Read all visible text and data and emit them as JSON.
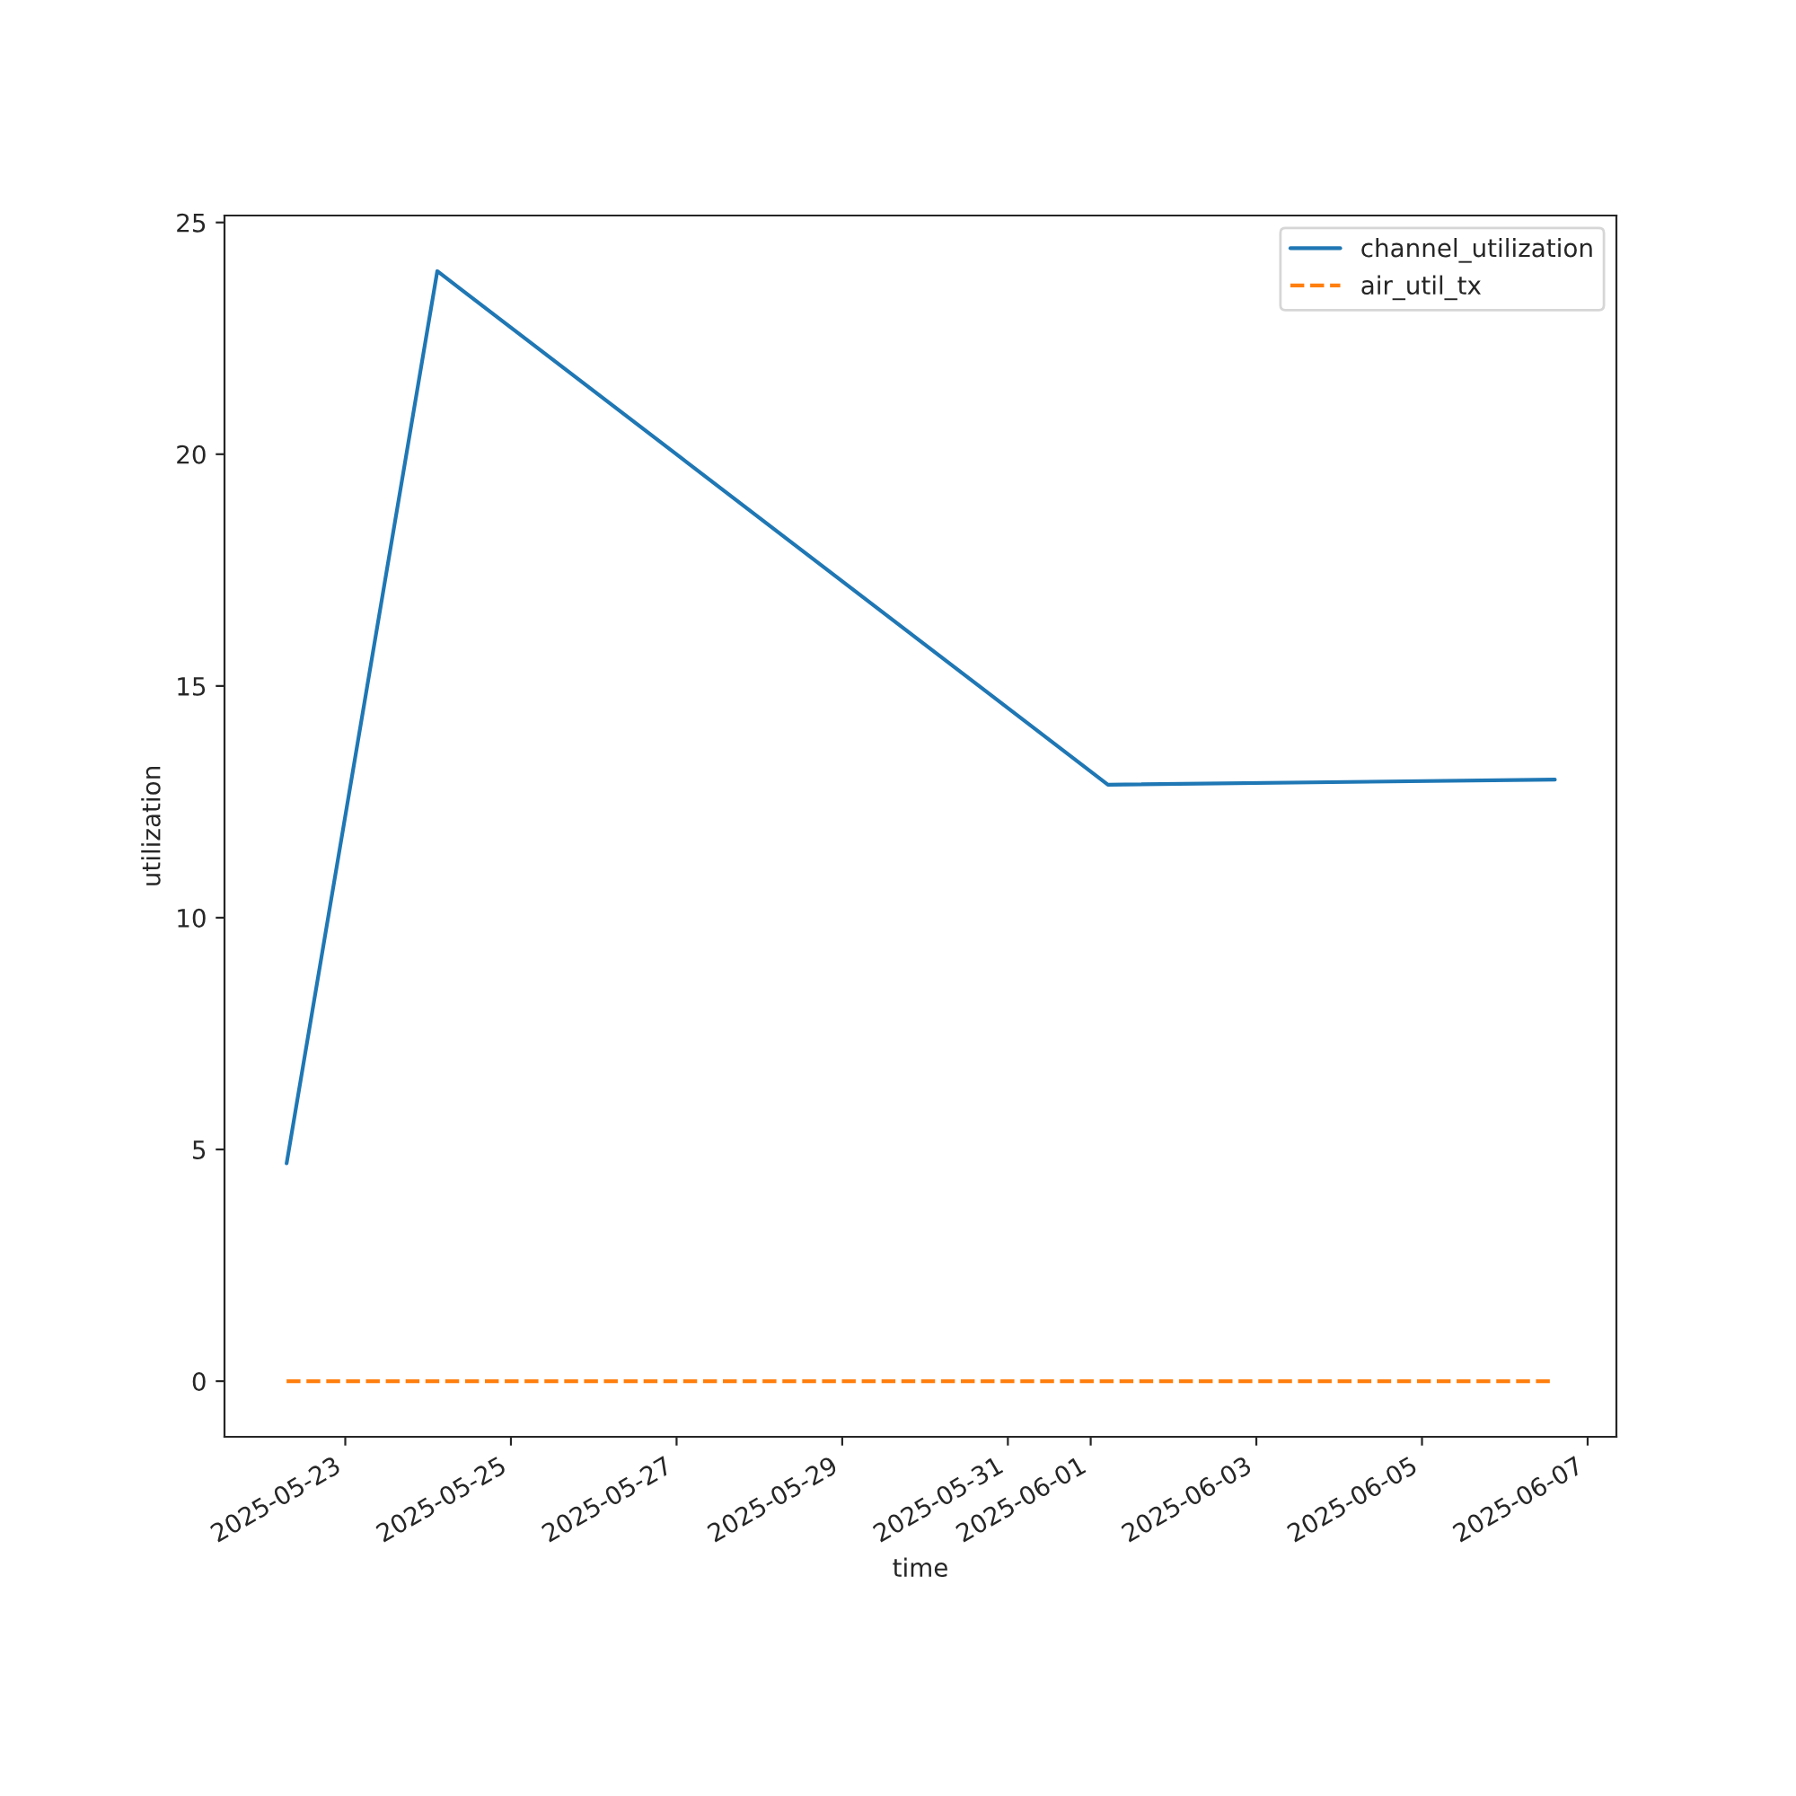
{
  "chart_data": {
    "type": "line",
    "xlabel": "time",
    "ylabel": "utilization",
    "x": [
      "2025-05-22T07:00",
      "2025-05-24T02:40",
      "2025-06-01T05:00",
      "2025-06-06T14:30"
    ],
    "series": [
      {
        "name": "channel_utilization",
        "color": "#1f77b4",
        "line_style": "solid",
        "values": [
          4.7,
          23.95,
          12.87,
          12.98
        ]
      },
      {
        "name": "air_util_tx",
        "color": "#ff7f0e",
        "line_style": "dashed",
        "values": [
          0,
          0,
          0,
          0
        ]
      }
    ],
    "xlim": [
      "2025-05-21T13:00",
      "2025-06-07T08:20"
    ],
    "ylim": [
      -1.2,
      25.15
    ],
    "xticks": [
      "2025-05-23",
      "2025-05-25",
      "2025-05-27",
      "2025-05-29",
      "2025-05-31",
      "2025-06-01",
      "2025-06-03",
      "2025-06-05",
      "2025-06-07"
    ],
    "yticks": [
      0,
      5,
      10,
      15,
      20,
      25
    ],
    "legend": "top right",
    "grid": false
  }
}
